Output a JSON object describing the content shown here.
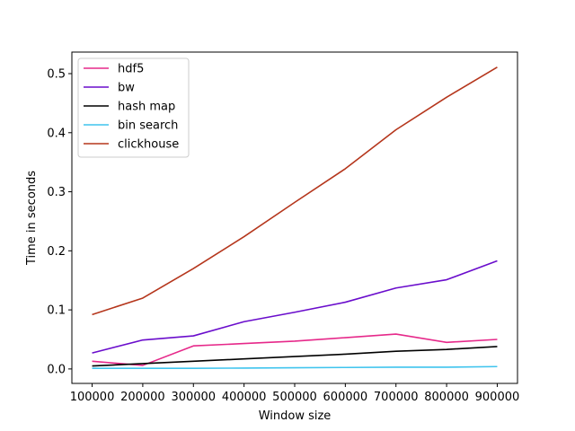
{
  "chart_data": {
    "type": "line",
    "title": "",
    "xlabel": "Window size",
    "ylabel": "Time in seconds",
    "x": [
      100000,
      200000,
      300000,
      400000,
      500000,
      600000,
      700000,
      800000,
      900000
    ],
    "x_ticks": [
      "100000",
      "200000",
      "300000",
      "400000",
      "500000",
      "600000",
      "700000",
      "800000",
      "900000"
    ],
    "y_ticks": [
      "0.0",
      "0.1",
      "0.2",
      "0.3",
      "0.4",
      "0.5"
    ],
    "xlim": [
      60000,
      940000
    ],
    "ylim": [
      -0.0245,
      0.5365
    ],
    "grid": false,
    "legend_position": "upper-left",
    "series": [
      {
        "name": "hdf5",
        "color": "#e6298a",
        "values": [
          0.013,
          0.006,
          0.039,
          0.043,
          0.047,
          0.053,
          0.059,
          0.045,
          0.05
        ]
      },
      {
        "name": "bw",
        "color": "#6a0dcc",
        "values": [
          0.027,
          0.049,
          0.056,
          0.08,
          0.096,
          0.113,
          0.137,
          0.151,
          0.183
        ]
      },
      {
        "name": "hash map",
        "color": "#000000",
        "values": [
          0.005,
          0.009,
          0.013,
          0.017,
          0.021,
          0.025,
          0.03,
          0.033,
          0.038
        ]
      },
      {
        "name": "bin search",
        "color": "#3fc4ee",
        "values": [
          0.001,
          0.001,
          0.001,
          0.0015,
          0.002,
          0.0025,
          0.003,
          0.003,
          0.004
        ]
      },
      {
        "name": "clickhouse",
        "color": "#b5361c",
        "values": [
          0.092,
          0.12,
          0.17,
          0.224,
          0.282,
          0.339,
          0.405,
          0.46,
          0.511
        ]
      }
    ]
  }
}
